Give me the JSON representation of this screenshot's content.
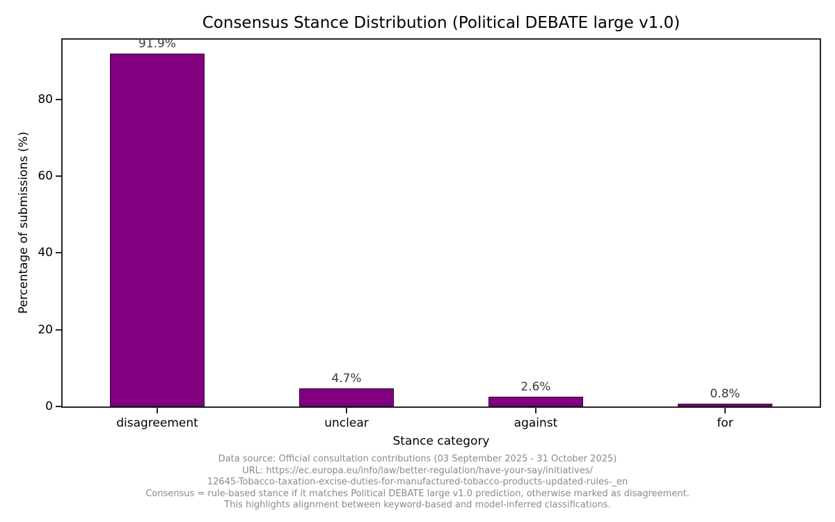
{
  "chart_data": {
    "type": "bar",
    "title": "Consensus Stance Distribution (Political DEBATE large v1.0)",
    "categories": [
      "disagreement",
      "unclear",
      "against",
      "for"
    ],
    "values": [
      91.9,
      4.7,
      2.6,
      0.8
    ],
    "value_labels": [
      "91.9%",
      "4.7%",
      "2.6%",
      "0.8%"
    ],
    "xlabel": "Stance category",
    "ylabel": "Percentage of submissions (%)",
    "ylim": [
      0,
      95.6
    ],
    "yticks": [
      0,
      20,
      40,
      60,
      80
    ],
    "bar_width_fraction": 0.5,
    "bar_color": "#800080",
    "bar_edge_color": "#2e0030",
    "grid": false,
    "legend": "none"
  },
  "footer": {
    "lines": [
      "Data source: Official consultation contributions (03 September 2025 - 31 October 2025)",
      "URL: https://ec.europa.eu/info/law/better-regulation/have-your-say/initiatives/",
      "12645-Tobacco-taxation-excise-duties-for-manufactured-tobacco-products-updated-rules-_en",
      "Consensus = rule-based stance if it matches Political DEBATE large v1.0 prediction, otherwise marked as disagreement.",
      "This highlights alignment between keyword-based and model-inferred classifications."
    ]
  },
  "colors": {
    "background": "#ffffff",
    "axis": "#262626",
    "title_text": "#000000",
    "tick_text": "#000000",
    "value_label_text": "#3a3a3a",
    "footer_text": "#8a8a8a"
  }
}
